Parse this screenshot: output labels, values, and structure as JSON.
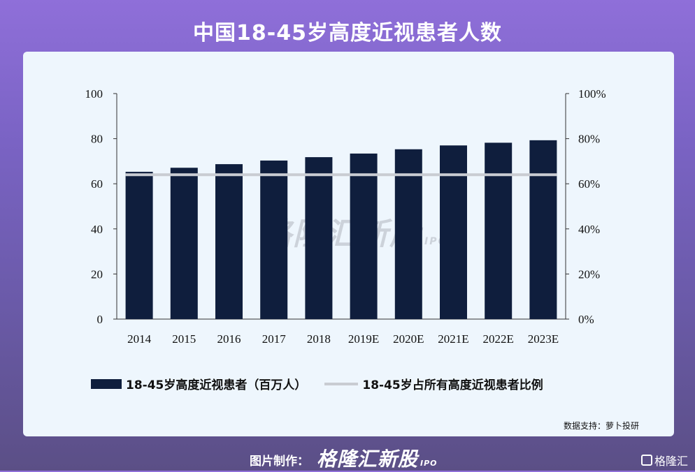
{
  "title": "中国18-45岁高度近视患者人数",
  "watermark": {
    "text": "格隆汇新股",
    "sub": "IPO"
  },
  "chart_data": {
    "type": "bar",
    "categories": [
      "2014",
      "2015",
      "2016",
      "2017",
      "2018",
      "2019E",
      "2020E",
      "2021E",
      "2022E",
      "2023E"
    ],
    "series": [
      {
        "name": "18-45岁高度近视患者（百万人）",
        "type": "bar",
        "axis": "left",
        "values": [
          65.3,
          67.1,
          68.7,
          70.3,
          71.8,
          73.4,
          75.3,
          77.0,
          78.2,
          79.3
        ]
      },
      {
        "name": "18-45岁占所有高度近视患者比例",
        "type": "line",
        "axis": "right",
        "values": [
          64,
          64,
          64,
          64,
          64,
          64,
          64,
          64,
          64,
          64
        ]
      }
    ],
    "ylim": [
      0,
      100
    ],
    "y2lim": [
      0,
      100
    ],
    "yticks": [
      "0",
      "20",
      "40",
      "60",
      "80",
      "100"
    ],
    "y2ticks": [
      "0%",
      "20%",
      "40%",
      "60%",
      "80%",
      "100%"
    ],
    "colors": {
      "bar": "#0f1e3d",
      "line": "#c9ccd2"
    },
    "legend_position": "bottom"
  },
  "legend": {
    "bar_label": "18-45岁高度近视患者（百万人）",
    "line_label": "18-45岁占所有高度近视患者比例"
  },
  "source": "数据支持：萝卜投研",
  "footer": {
    "label": "图片制作：",
    "brand": "格隆汇新股",
    "brand_sub": "IPO",
    "corner": "格隆汇"
  }
}
